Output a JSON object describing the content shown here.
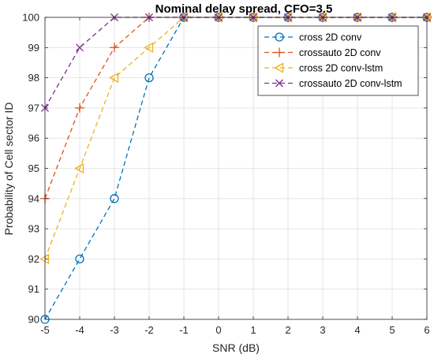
{
  "chart_data": {
    "type": "line",
    "title": "Nominal delay spread, CFO=3.5",
    "xlabel": "SNR (dB)",
    "ylabel": "Probability of Cell sector ID",
    "xlim": [
      -5,
      6
    ],
    "ylim": [
      90,
      100
    ],
    "x": [
      -5,
      -4,
      -3,
      -2,
      -1,
      0,
      1,
      2,
      3,
      4,
      5,
      6
    ],
    "xticks": [
      "-5",
      "-4",
      "-3",
      "-2",
      "-1",
      "0",
      "1",
      "2",
      "3",
      "4",
      "5",
      "6"
    ],
    "yticks": [
      "90",
      "91",
      "92",
      "93",
      "94",
      "95",
      "96",
      "97",
      "98",
      "99",
      "100"
    ],
    "grid": true,
    "legend_position": "top-right",
    "series": [
      {
        "name": "cross 2D conv",
        "color": "#0072BD",
        "marker": "circle",
        "values": [
          90,
          92,
          94,
          98,
          100,
          100,
          100,
          100,
          100,
          100,
          100,
          100
        ]
      },
      {
        "name": "crossauto 2D conv",
        "color": "#D95319",
        "marker": "plus",
        "values": [
          94,
          97,
          99,
          100,
          100,
          100,
          100,
          100,
          100,
          100,
          100,
          100
        ]
      },
      {
        "name": "cross 2D conv-lstm",
        "color": "#EDB120",
        "marker": "triangle-left",
        "values": [
          92,
          95,
          98,
          99,
          100,
          100,
          100,
          100,
          100,
          100,
          100,
          100
        ]
      },
      {
        "name": "crossauto 2D conv-lstm",
        "color": "#7E2F8E",
        "marker": "x",
        "values": [
          97,
          99,
          100,
          100,
          100,
          100,
          100,
          100,
          100,
          100,
          100,
          100
        ]
      }
    ]
  }
}
